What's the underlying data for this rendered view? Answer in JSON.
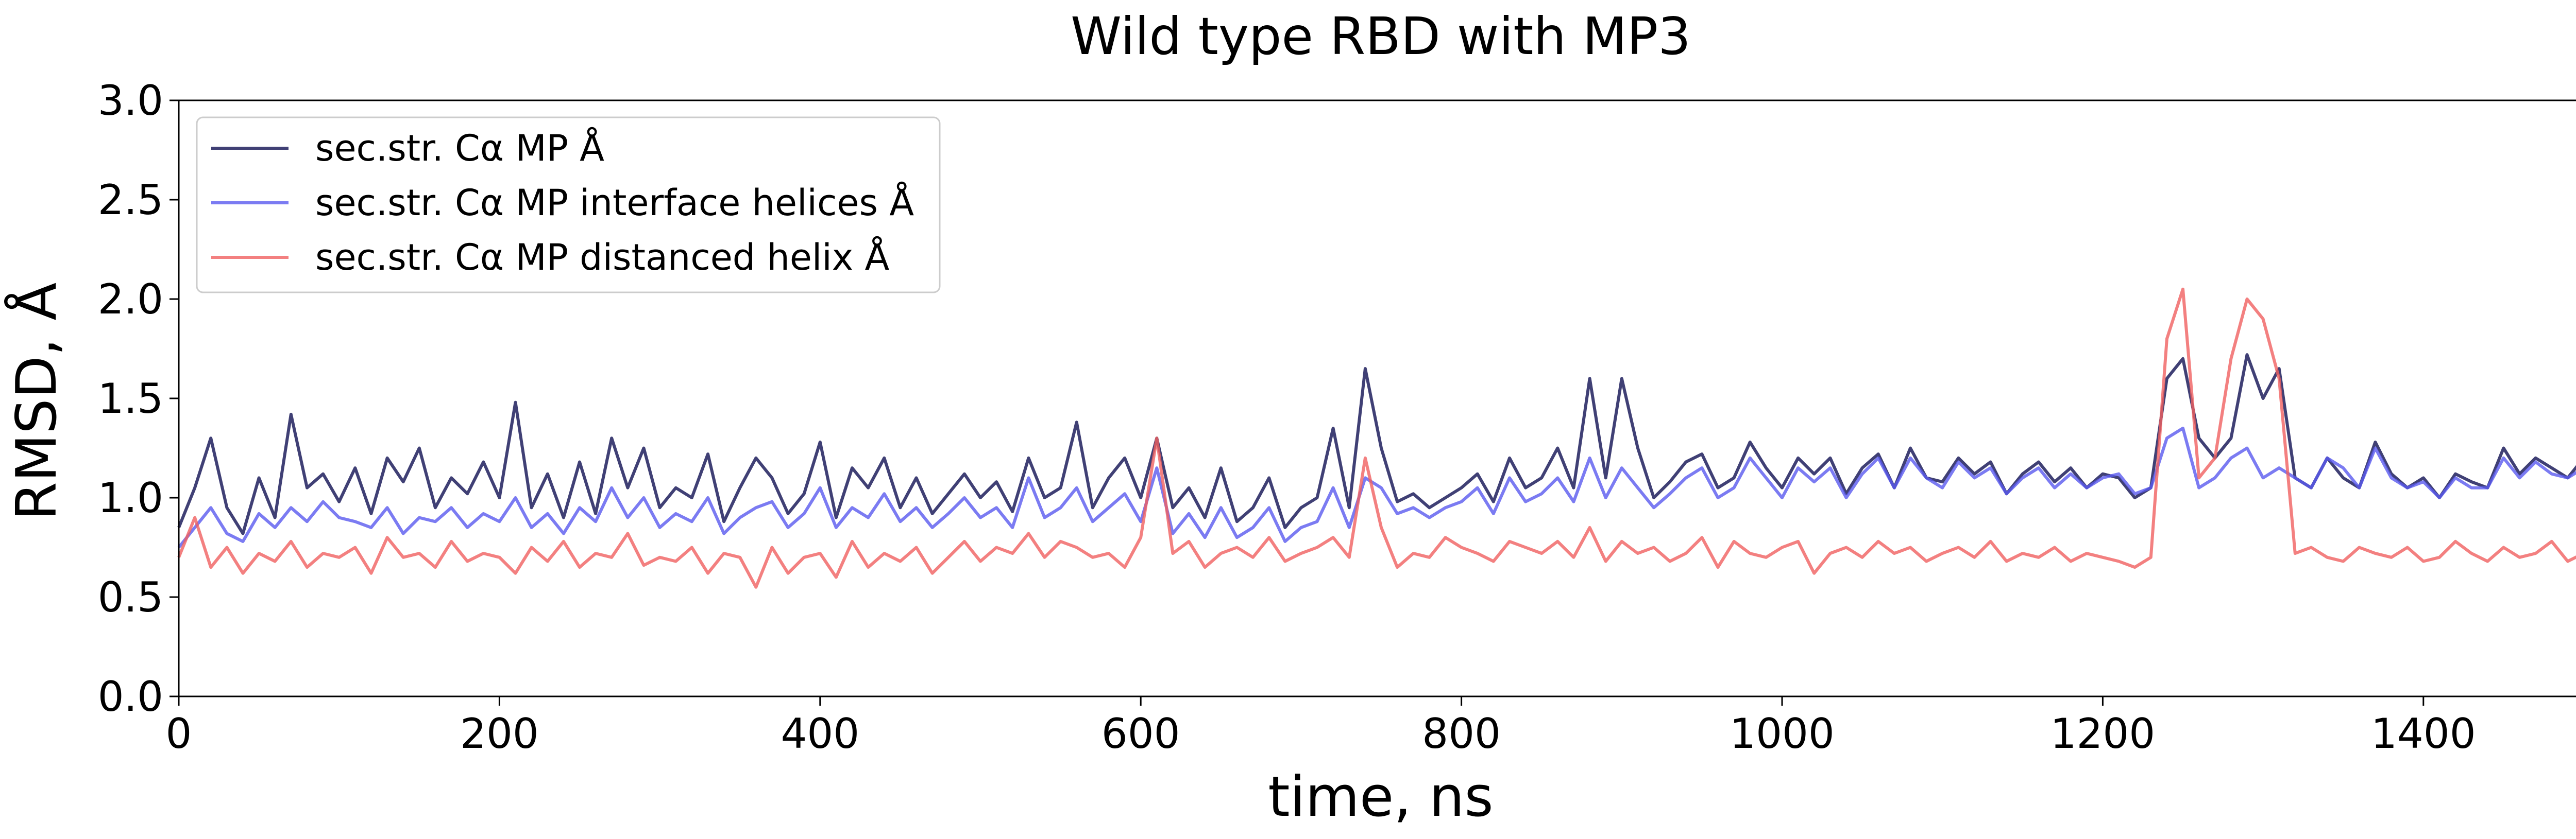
{
  "chart_data": {
    "type": "line",
    "title": "Wild type RBD with MP3",
    "xlabel": "time, ns",
    "ylabel": "RMSD, Å",
    "xlim": [
      0,
      1500
    ],
    "ylim": [
      0,
      3.0
    ],
    "xticks": [
      "0",
      "200",
      "400",
      "600",
      "800",
      "1000",
      "1200",
      "1400"
    ],
    "yticks": [
      "0.0",
      "0.5",
      "1.0",
      "1.5",
      "2.0",
      "2.5",
      "3.0"
    ],
    "grid": false,
    "legend_position": "top-left",
    "x": [
      0,
      10,
      20,
      30,
      40,
      50,
      60,
      70,
      80,
      90,
      100,
      110,
      120,
      130,
      140,
      150,
      160,
      170,
      180,
      190,
      200,
      210,
      220,
      230,
      240,
      250,
      260,
      270,
      280,
      290,
      300,
      310,
      320,
      330,
      340,
      350,
      360,
      370,
      380,
      390,
      400,
      410,
      420,
      430,
      440,
      450,
      460,
      470,
      480,
      490,
      500,
      510,
      520,
      530,
      540,
      550,
      560,
      570,
      580,
      590,
      600,
      610,
      620,
      630,
      640,
      650,
      660,
      670,
      680,
      690,
      700,
      710,
      720,
      730,
      740,
      750,
      760,
      770,
      780,
      790,
      800,
      810,
      820,
      830,
      840,
      850,
      860,
      870,
      880,
      890,
      900,
      910,
      920,
      930,
      940,
      950,
      960,
      970,
      980,
      990,
      1000,
      1010,
      1020,
      1030,
      1040,
      1050,
      1060,
      1070,
      1080,
      1090,
      1100,
      1110,
      1120,
      1130,
      1140,
      1150,
      1160,
      1170,
      1180,
      1190,
      1200,
      1210,
      1220,
      1230,
      1240,
      1250,
      1260,
      1270,
      1280,
      1290,
      1300,
      1310,
      1320,
      1330,
      1340,
      1350,
      1360,
      1370,
      1380,
      1390,
      1400,
      1410,
      1420,
      1430,
      1440,
      1450,
      1460,
      1470,
      1480,
      1490,
      1500
    ],
    "series": [
      {
        "name": "sec.str. Cα MP Å",
        "color": "#2b2b66",
        "opacity": 0.9,
        "values": [
          0.85,
          1.05,
          1.3,
          0.95,
          0.82,
          1.1,
          0.9,
          1.42,
          1.05,
          1.12,
          0.98,
          1.15,
          0.92,
          1.2,
          1.08,
          1.25,
          0.95,
          1.1,
          1.02,
          1.18,
          1.0,
          1.48,
          0.95,
          1.12,
          0.9,
          1.18,
          0.92,
          1.3,
          1.05,
          1.25,
          0.95,
          1.05,
          1.0,
          1.22,
          0.88,
          1.05,
          1.2,
          1.1,
          0.92,
          1.02,
          1.28,
          0.9,
          1.15,
          1.05,
          1.2,
          0.95,
          1.1,
          0.92,
          1.02,
          1.12,
          1.0,
          1.08,
          0.93,
          1.2,
          1.0,
          1.05,
          1.38,
          0.95,
          1.1,
          1.2,
          1.0,
          1.3,
          0.95,
          1.05,
          0.9,
          1.15,
          0.88,
          0.95,
          1.1,
          0.85,
          0.95,
          1.0,
          1.35,
          0.95,
          1.65,
          1.25,
          0.98,
          1.02,
          0.95,
          1.0,
          1.05,
          1.12,
          0.98,
          1.2,
          1.05,
          1.1,
          1.25,
          1.05,
          1.6,
          1.1,
          1.6,
          1.25,
          1.0,
          1.08,
          1.18,
          1.22,
          1.05,
          1.1,
          1.28,
          1.15,
          1.05,
          1.2,
          1.12,
          1.2,
          1.02,
          1.15,
          1.22,
          1.05,
          1.25,
          1.1,
          1.08,
          1.2,
          1.12,
          1.18,
          1.02,
          1.12,
          1.18,
          1.08,
          1.15,
          1.05,
          1.12,
          1.1,
          1.0,
          1.05,
          1.6,
          1.7,
          1.3,
          1.2,
          1.3,
          1.72,
          1.5,
          1.65,
          1.1,
          1.05,
          1.2,
          1.1,
          1.05,
          1.28,
          1.12,
          1.05,
          1.1,
          1.0,
          1.12,
          1.08,
          1.05,
          1.25,
          1.12,
          1.2,
          1.15,
          1.1,
          1.2
        ]
      },
      {
        "name": "sec.str. Cα MP interface helices Å",
        "color": "#5a5aef",
        "opacity": 0.8,
        "values": [
          0.75,
          0.85,
          0.95,
          0.82,
          0.78,
          0.92,
          0.85,
          0.95,
          0.88,
          0.98,
          0.9,
          0.88,
          0.85,
          0.95,
          0.82,
          0.9,
          0.88,
          0.95,
          0.85,
          0.92,
          0.88,
          1.0,
          0.85,
          0.92,
          0.82,
          0.95,
          0.88,
          1.05,
          0.9,
          1.0,
          0.85,
          0.92,
          0.88,
          1.0,
          0.82,
          0.9,
          0.95,
          0.98,
          0.85,
          0.92,
          1.05,
          0.85,
          0.95,
          0.9,
          1.02,
          0.88,
          0.95,
          0.85,
          0.92,
          1.0,
          0.9,
          0.95,
          0.85,
          1.1,
          0.9,
          0.95,
          1.05,
          0.88,
          0.95,
          1.02,
          0.88,
          1.15,
          0.82,
          0.92,
          0.8,
          0.95,
          0.8,
          0.85,
          0.95,
          0.78,
          0.85,
          0.88,
          1.05,
          0.85,
          1.1,
          1.05,
          0.92,
          0.95,
          0.9,
          0.95,
          0.98,
          1.05,
          0.92,
          1.1,
          0.98,
          1.02,
          1.1,
          0.98,
          1.2,
          1.0,
          1.15,
          1.05,
          0.95,
          1.02,
          1.1,
          1.15,
          1.0,
          1.05,
          1.2,
          1.1,
          1.0,
          1.15,
          1.08,
          1.15,
          1.0,
          1.12,
          1.2,
          1.05,
          1.2,
          1.1,
          1.05,
          1.18,
          1.1,
          1.15,
          1.02,
          1.1,
          1.15,
          1.05,
          1.12,
          1.05,
          1.1,
          1.12,
          1.02,
          1.05,
          1.3,
          1.35,
          1.05,
          1.1,
          1.2,
          1.25,
          1.1,
          1.15,
          1.1,
          1.05,
          1.2,
          1.15,
          1.05,
          1.25,
          1.1,
          1.05,
          1.08,
          1.0,
          1.1,
          1.05,
          1.05,
          1.2,
          1.1,
          1.18,
          1.12,
          1.1,
          1.15
        ]
      },
      {
        "name": "sec.str. Cα MP distanced helix Å",
        "color": "#f06060",
        "opacity": 0.8,
        "values": [
          0.7,
          0.9,
          0.65,
          0.75,
          0.62,
          0.72,
          0.68,
          0.78,
          0.65,
          0.72,
          0.7,
          0.75,
          0.62,
          0.8,
          0.7,
          0.72,
          0.65,
          0.78,
          0.68,
          0.72,
          0.7,
          0.62,
          0.75,
          0.68,
          0.78,
          0.65,
          0.72,
          0.7,
          0.82,
          0.66,
          0.7,
          0.68,
          0.75,
          0.62,
          0.72,
          0.7,
          0.55,
          0.75,
          0.62,
          0.7,
          0.72,
          0.6,
          0.78,
          0.65,
          0.72,
          0.68,
          0.75,
          0.62,
          0.7,
          0.78,
          0.68,
          0.75,
          0.72,
          0.82,
          0.7,
          0.78,
          0.75,
          0.7,
          0.72,
          0.65,
          0.8,
          1.3,
          0.72,
          0.78,
          0.65,
          0.72,
          0.75,
          0.7,
          0.8,
          0.68,
          0.72,
          0.75,
          0.8,
          0.7,
          1.2,
          0.85,
          0.65,
          0.72,
          0.7,
          0.8,
          0.75,
          0.72,
          0.68,
          0.78,
          0.75,
          0.72,
          0.78,
          0.7,
          0.85,
          0.68,
          0.78,
          0.72,
          0.75,
          0.68,
          0.72,
          0.8,
          0.65,
          0.78,
          0.72,
          0.7,
          0.75,
          0.78,
          0.62,
          0.72,
          0.75,
          0.7,
          0.78,
          0.72,
          0.75,
          0.68,
          0.72,
          0.75,
          0.7,
          0.78,
          0.68,
          0.72,
          0.7,
          0.75,
          0.68,
          0.72,
          0.7,
          0.68,
          0.65,
          0.7,
          1.8,
          2.05,
          1.1,
          1.2,
          1.7,
          2.0,
          1.9,
          1.6,
          0.72,
          0.75,
          0.7,
          0.68,
          0.75,
          0.72,
          0.7,
          0.75,
          0.68,
          0.7,
          0.78,
          0.72,
          0.68,
          0.75,
          0.7,
          0.72,
          0.78,
          0.68,
          0.72
        ]
      }
    ]
  }
}
